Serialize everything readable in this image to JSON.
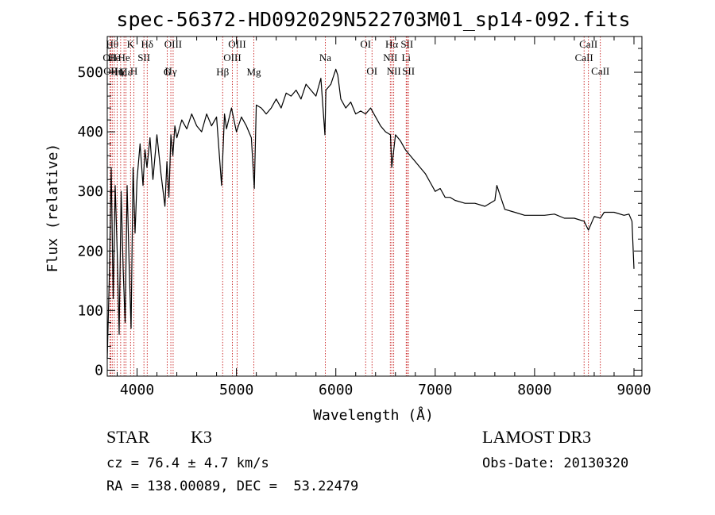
{
  "chart_data": {
    "type": "line",
    "title": "spec-56372-HD092029N522703M01_sp14-092.fits",
    "xlabel": "Wavelength (Å)",
    "ylabel": "Flux (relative)",
    "xlim": [
      3700,
      9080
    ],
    "ylim": [
      -10,
      560
    ],
    "xticks": [
      4000,
      5000,
      6000,
      7000,
      8000,
      9000
    ],
    "yticks": [
      0,
      100,
      200,
      300,
      400,
      500
    ],
    "series": [
      {
        "name": "flux",
        "x": [
          3700,
          3720,
          3740,
          3760,
          3780,
          3800,
          3820,
          3840,
          3860,
          3880,
          3900,
          3920,
          3940,
          3960,
          3980,
          4000,
          4030,
          4060,
          4080,
          4100,
          4130,
          4160,
          4200,
          4240,
          4280,
          4300,
          4320,
          4340,
          4360,
          4380,
          4400,
          4450,
          4500,
          4550,
          4600,
          4650,
          4700,
          4750,
          4800,
          4850,
          4880,
          4900,
          4950,
          5000,
          5050,
          5100,
          5150,
          5180,
          5200,
          5250,
          5300,
          5350,
          5400,
          5450,
          5500,
          5550,
          5600,
          5650,
          5700,
          5750,
          5800,
          5850,
          5890,
          5900,
          5950,
          6000,
          6020,
          6050,
          6100,
          6150,
          6200,
          6250,
          6300,
          6350,
          6400,
          6450,
          6500,
          6550,
          6563,
          6600,
          6650,
          6700,
          6750,
          6800,
          6850,
          6900,
          6950,
          7000,
          7050,
          7100,
          7150,
          7200,
          7300,
          7400,
          7500,
          7600,
          7620,
          7700,
          7800,
          7900,
          8000,
          8100,
          8200,
          8300,
          8400,
          8498,
          8542,
          8600,
          8662,
          8700,
          8800,
          8900,
          8950,
          8980,
          9000
        ],
        "values": [
          20,
          150,
          340,
          120,
          310,
          200,
          60,
          300,
          170,
          80,
          310,
          180,
          70,
          340,
          230,
          320,
          380,
          310,
          370,
          340,
          390,
          320,
          395,
          330,
          275,
          350,
          290,
          395,
          360,
          410,
          390,
          420,
          405,
          430,
          410,
          400,
          430,
          410,
          425,
          310,
          430,
          405,
          440,
          400,
          425,
          410,
          390,
          305,
          445,
          440,
          430,
          440,
          455,
          440,
          465,
          460,
          470,
          455,
          480,
          470,
          460,
          490,
          395,
          470,
          480,
          505,
          495,
          455,
          440,
          450,
          430,
          435,
          430,
          440,
          425,
          410,
          400,
          395,
          340,
          395,
          385,
          370,
          360,
          350,
          340,
          330,
          315,
          300,
          305,
          290,
          290,
          285,
          280,
          280,
          275,
          285,
          310,
          270,
          265,
          260,
          260,
          260,
          262,
          255,
          255,
          250,
          235,
          258,
          255,
          265,
          265,
          260,
          262,
          250,
          170
        ],
        "color": "#000000"
      }
    ],
    "line_markers": [
      {
        "x": 3727,
        "label": "OII",
        "row": 2
      },
      {
        "x": 3734,
        "label": "OII",
        "row": 3
      },
      {
        "x": 3750,
        "label": "Hθ",
        "row": 1
      },
      {
        "x": 3771,
        "label": "He",
        "row": 2
      },
      {
        "x": 3799,
        "label": "Hη",
        "row": 3
      },
      {
        "x": 3835,
        "label": "Hζ",
        "row": 4
      },
      {
        "x": 3869,
        "label": "He",
        "row": 2
      },
      {
        "x": 3889,
        "label": "Hε",
        "row": 4
      },
      {
        "x": 3934,
        "label": "K",
        "row": 1
      },
      {
        "x": 3968,
        "label": "H",
        "row": 3
      },
      {
        "x": 4069,
        "label": "SII",
        "row": 2
      },
      {
        "x": 4102,
        "label": "Hδ",
        "row": 1
      },
      {
        "x": 4304,
        "label": "G",
        "row": 4
      },
      {
        "x": 4340,
        "label": "Hγ",
        "row": 3
      },
      {
        "x": 4363,
        "label": "OIII",
        "row": 1
      },
      {
        "x": 4861,
        "label": "Hβ",
        "row": 4
      },
      {
        "x": 4959,
        "label": "OIII",
        "row": 2
      },
      {
        "x": 5007,
        "label": "OIII",
        "row": 1
      },
      {
        "x": 5175,
        "label": "Mg",
        "row": 4
      },
      {
        "x": 5894,
        "label": "Na",
        "row": 2
      },
      {
        "x": 6300,
        "label": "OI",
        "row": 1
      },
      {
        "x": 6364,
        "label": "OI",
        "row": 3
      },
      {
        "x": 6548,
        "label": "NII",
        "row": 2
      },
      {
        "x": 6563,
        "label": "Hα",
        "row": 1
      },
      {
        "x": 6583,
        "label": "NII",
        "row": 3
      },
      {
        "x": 6708,
        "label": "Li",
        "row": 2
      },
      {
        "x": 6716,
        "label": "SII",
        "row": 1
      },
      {
        "x": 6731,
        "label": "SII",
        "row": 3
      },
      {
        "x": 8498,
        "label": "CaII",
        "row": 2
      },
      {
        "x": 8542,
        "label": "CaII",
        "row": 1
      },
      {
        "x": 8662,
        "label": "CaII",
        "row": 3
      }
    ]
  },
  "info": {
    "class": "STAR",
    "subclass": "K3",
    "redshift_line": "cz = 76.4 ± 4.7 km/s",
    "coords_line": "RA = 138.00089, DEC =  53.22479",
    "survey": "LAMOST DR3",
    "obs_date": "Obs-Date: 20130320"
  }
}
